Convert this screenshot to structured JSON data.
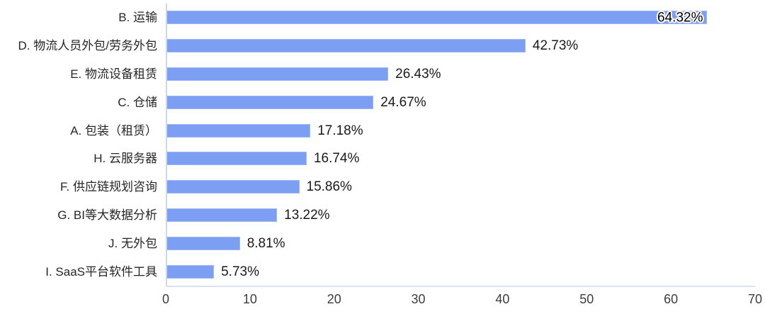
{
  "chart_data": {
    "type": "bar",
    "orientation": "horizontal",
    "title": "",
    "xlabel": "",
    "ylabel": "",
    "grid": false,
    "legend": false,
    "xlim": [
      0,
      70
    ],
    "xticks": [
      "0",
      "10",
      "20",
      "30",
      "40",
      "50",
      "60",
      "70"
    ],
    "bar_color": "#7C9EF3",
    "axis_line_color": "#d1daec",
    "categories": [
      "B. 运输",
      "D. 物流人员外包/劳务外包",
      "E. 物流设备租赁",
      "C. 仓储",
      "A. 包装（租赁）",
      "H. 云服务器",
      "F. 供应链规划咨询",
      "G. BI等大数据分析",
      "J. 无外包",
      "I. SaaS平台软件工具"
    ],
    "values": [
      64.32,
      42.73,
      26.43,
      24.67,
      17.18,
      16.74,
      15.86,
      13.22,
      8.81,
      5.73
    ],
    "value_labels": [
      "64.32%",
      "42.73%",
      "26.43%",
      "24.67%",
      "17.18%",
      "16.74%",
      "15.86%",
      "13.22%",
      "8.81%",
      "5.73%"
    ],
    "value_label_placement": [
      "inside-end",
      "outside",
      "outside",
      "outside",
      "outside",
      "outside",
      "outside",
      "outside",
      "outside",
      "outside"
    ]
  }
}
